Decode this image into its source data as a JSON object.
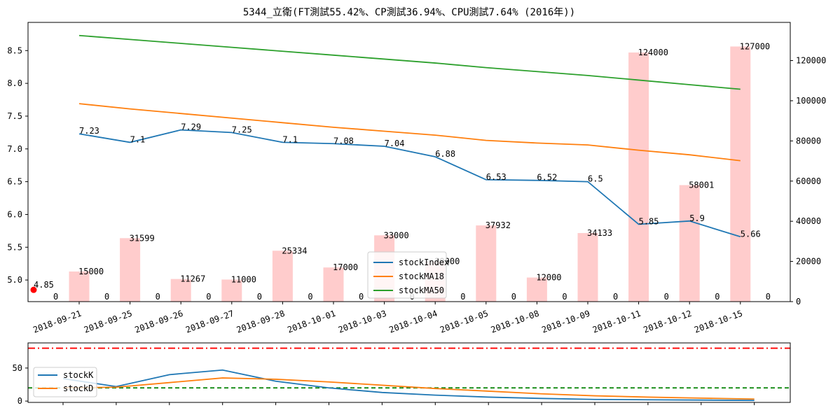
{
  "chart_data": [
    {
      "type": "bar+line",
      "title": "5344_立衛(FT測試55.42%、CP測試36.94%、CPU測試7.64% (2016年))",
      "categories": [
        "2018-09-21",
        "2018-09-25",
        "2018-09-26",
        "2018-09-27",
        "2018-09-28",
        "2018-10-01",
        "2018-10-03",
        "2018-10-04",
        "2018-10-05",
        "2018-10-08",
        "2018-10-09",
        "2018-10-11",
        "2018-10-12",
        "2018-10-15"
      ],
      "left_axis": {
        "ylim": [
          4.67,
          8.93
        ],
        "ticks": [
          5.0,
          5.5,
          6.0,
          6.5,
          7.0,
          7.5,
          8.0,
          8.5
        ]
      },
      "right_axis": {
        "ylim": [
          0,
          139000
        ],
        "ticks": [
          0,
          20000,
          40000,
          60000,
          80000,
          100000,
          120000
        ]
      },
      "start_point": {
        "label": "4.85",
        "value": 4.85,
        "zero_label": "0"
      },
      "bars": {
        "color": "#ffcccc",
        "values": [
          15000,
          31599,
          11267,
          11000,
          25334,
          17000,
          33000,
          20000,
          37932,
          12000,
          34133,
          124000,
          58001,
          127000
        ],
        "labels": [
          "15000",
          "31599",
          "11267",
          "11000",
          "25334",
          "17000",
          "33000",
          "20000",
          "37932",
          "12000",
          "34133",
          "124000",
          "58001",
          "127000"
        ],
        "zero_labels": [
          "0",
          "0",
          "0",
          "0",
          "0",
          "0",
          "0",
          "0",
          "0",
          "0",
          "0",
          "0",
          "0",
          "0"
        ]
      },
      "series": [
        {
          "name": "stockIndex",
          "color": "#1f77b4",
          "values": [
            7.23,
            7.1,
            7.29,
            7.25,
            7.1,
            7.08,
            7.04,
            6.88,
            6.53,
            6.52,
            6.5,
            5.85,
            5.9,
            5.66
          ],
          "labels": [
            "7.23",
            "7.1",
            "7.29",
            "7.25",
            "7.1",
            "7.08",
            "7.04",
            "6.88",
            "6.53",
            "6.52",
            "6.5",
            "5.85",
            "5.9",
            "5.66"
          ]
        },
        {
          "name": "stockMA18",
          "color": "#ff7f0e",
          "values": [
            7.69,
            7.61,
            7.54,
            7.47,
            7.4,
            7.33,
            7.27,
            7.21,
            7.13,
            7.09,
            7.06,
            6.98,
            6.91,
            6.82
          ]
        },
        {
          "name": "stockMA50",
          "color": "#2ca02c",
          "values": [
            8.73,
            8.67,
            8.61,
            8.55,
            8.49,
            8.43,
            8.37,
            8.31,
            8.24,
            8.18,
            8.12,
            8.05,
            7.98,
            7.91
          ]
        }
      ],
      "legend": "center"
    },
    {
      "type": "line",
      "ylim": [
        -2,
        88
      ],
      "ticks": [
        0,
        50
      ],
      "tick_labels": [
        "0",
        "50"
      ],
      "reference_lines": [
        {
          "value": 80,
          "color": "#ff0000",
          "style": "dash-dot"
        },
        {
          "value": 20,
          "color": "#008000",
          "style": "dashed"
        }
      ],
      "series": [
        {
          "name": "stockK",
          "color": "#1f77b4",
          "values": [
            34,
            22,
            40,
            47,
            30,
            20,
            13,
            9,
            6,
            4,
            2.5,
            2,
            1.5,
            1
          ]
        },
        {
          "name": "stockD",
          "color": "#ff7f0e",
          "values": [
            20,
            21,
            28,
            35,
            33,
            29,
            24,
            19,
            15,
            11,
            8,
            6,
            4.5,
            3
          ]
        }
      ],
      "legend": "left"
    }
  ]
}
